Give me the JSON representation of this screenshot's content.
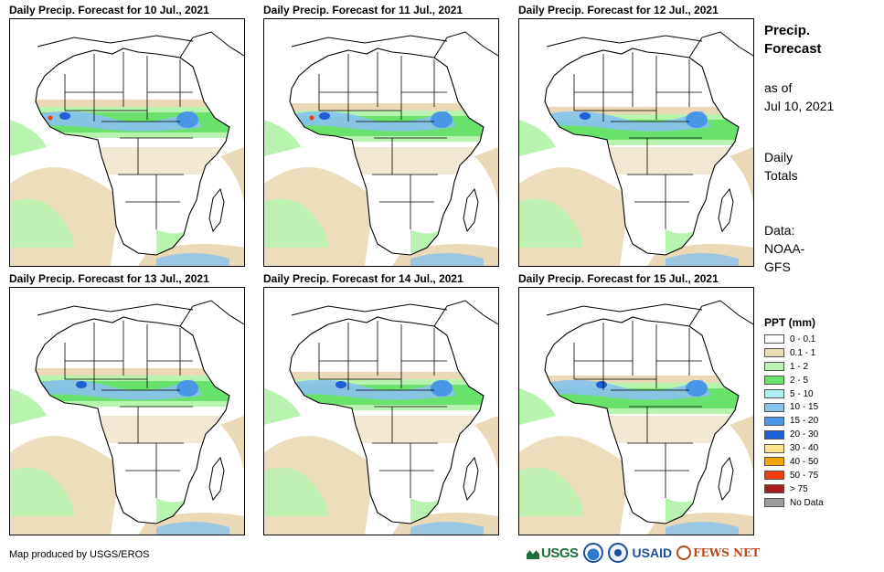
{
  "panels": [
    {
      "title": "Daily Precip. Forecast for 10 Jul., 2021"
    },
    {
      "title": "Daily Precip. Forecast for 11 Jul., 2021"
    },
    {
      "title": "Daily Precip. Forecast for 12 Jul., 2021"
    },
    {
      "title": "Daily Precip. Forecast for 13 Jul., 2021"
    },
    {
      "title": "Daily Precip. Forecast for 14 Jul., 2021"
    },
    {
      "title": "Daily Precip. Forecast for 15 Jul., 2021"
    }
  ],
  "sidebar": {
    "title_line1": "Precip.",
    "title_line2": "Forecast",
    "asof_line1": "as of",
    "asof_line2": "Jul 10, 2021",
    "totals_line1": "Daily",
    "totals_line2": "Totals",
    "source_line1": "Data:",
    "source_line2": "NOAA-",
    "source_line3": "GFS"
  },
  "legend": {
    "title": "PPT (mm)",
    "items": [
      {
        "label": "0 - 0.1",
        "color": "#ffffff"
      },
      {
        "label": "0.1 - 1",
        "color": "#ead9b6"
      },
      {
        "label": "1 - 2",
        "color": "#b8f4b0"
      },
      {
        "label": "2 - 5",
        "color": "#68e26a"
      },
      {
        "label": "5 - 10",
        "color": "#b3ebf5"
      },
      {
        "label": "10 - 15",
        "color": "#88c2ee"
      },
      {
        "label": "15 - 20",
        "color": "#4a96e6"
      },
      {
        "label": "20 - 30",
        "color": "#1e5fd6"
      },
      {
        "label": "30 - 40",
        "color": "#fbe48a"
      },
      {
        "label": "40 - 50",
        "color": "#f5a300"
      },
      {
        "label": "50 - 75",
        "color": "#f03c0a"
      },
      {
        "label": "> 75",
        "color": "#a51d1d"
      },
      {
        "label": "No Data",
        "color": "#9a9a9a"
      }
    ]
  },
  "credit": "Map produced by USGS/EROS",
  "logos": {
    "usgs": "USGS",
    "usaid": "USAID",
    "fews": "FEWS NET"
  }
}
